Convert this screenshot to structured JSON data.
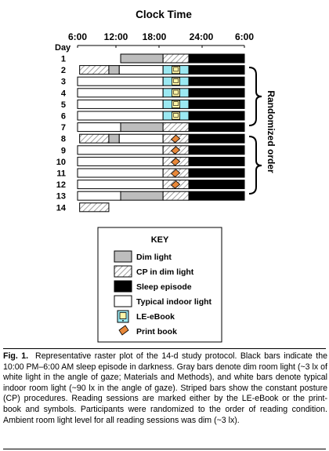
{
  "title": "Clock Time",
  "day_label": "Day",
  "clock_ticks": [
    "6:00",
    "12:00",
    "18:00",
    "24:00",
    "6:00"
  ],
  "group_labels": {
    "randomized": "Randomized order"
  },
  "colors": {
    "dim": "#bdbdbd",
    "typical": "#ffffff",
    "sleep": "#000000",
    "cp_stripe": "#888888",
    "ebook": "#9be9f2",
    "print_book": "#e8883a"
  },
  "protocol": {
    "days": [
      {
        "day": "1",
        "segments": [
          [
            "D",
            12.2,
            18.3
          ],
          [
            "C",
            18.3,
            22
          ],
          [
            "S",
            22,
            30
          ]
        ]
      },
      {
        "day": "2",
        "segments": [
          [
            "C",
            6.3,
            10.5
          ],
          [
            "D",
            10.5,
            12
          ],
          [
            "W",
            12,
            18.3
          ],
          [
            "E",
            18.3,
            22
          ],
          [
            "S",
            22,
            30
          ]
        ]
      },
      {
        "day": "3",
        "segments": [
          [
            "W",
            6,
            18.3
          ],
          [
            "E",
            18.3,
            22
          ],
          [
            "S",
            22,
            30
          ]
        ]
      },
      {
        "day": "4",
        "segments": [
          [
            "W",
            6,
            18.3
          ],
          [
            "E",
            18.3,
            22
          ],
          [
            "S",
            22,
            30
          ]
        ]
      },
      {
        "day": "5",
        "segments": [
          [
            "W",
            6,
            18.3
          ],
          [
            "E",
            18.3,
            22
          ],
          [
            "S",
            22,
            30
          ]
        ]
      },
      {
        "day": "6",
        "segments": [
          [
            "W",
            6,
            18.3
          ],
          [
            "E",
            18.3,
            22
          ],
          [
            "S",
            22,
            30
          ]
        ]
      },
      {
        "day": "7",
        "segments": [
          [
            "W",
            6,
            12.2
          ],
          [
            "D",
            12.2,
            18.3
          ],
          [
            "C",
            18.3,
            22
          ],
          [
            "S",
            22,
            30
          ]
        ]
      },
      {
        "day": "8",
        "segments": [
          [
            "C",
            6.3,
            10.5
          ],
          [
            "D",
            10.5,
            12
          ],
          [
            "W",
            12,
            18.3
          ],
          [
            "P",
            18.3,
            22
          ],
          [
            "S",
            22,
            30
          ]
        ]
      },
      {
        "day": "9",
        "segments": [
          [
            "W",
            6,
            18.3
          ],
          [
            "P",
            18.3,
            22
          ],
          [
            "S",
            22,
            30
          ]
        ]
      },
      {
        "day": "10",
        "segments": [
          [
            "W",
            6,
            18.3
          ],
          [
            "P",
            18.3,
            22
          ],
          [
            "S",
            22,
            30
          ]
        ]
      },
      {
        "day": "11",
        "segments": [
          [
            "W",
            6,
            18.3
          ],
          [
            "P",
            18.3,
            22
          ],
          [
            "S",
            22,
            30
          ]
        ]
      },
      {
        "day": "12",
        "segments": [
          [
            "W",
            6,
            18.3
          ],
          [
            "P",
            18.3,
            22
          ],
          [
            "S",
            22,
            30
          ]
        ]
      },
      {
        "day": "13",
        "segments": [
          [
            "W",
            6,
            12.2
          ],
          [
            "D",
            12.2,
            18.3
          ],
          [
            "C",
            18.3,
            22
          ],
          [
            "S",
            22,
            30
          ]
        ]
      },
      {
        "day": "14",
        "segments": [
          [
            "C",
            6.3,
            10.5
          ]
        ]
      }
    ]
  },
  "key": {
    "title": "KEY",
    "items": [
      {
        "symbol": "dim",
        "label": "Dim light"
      },
      {
        "symbol": "cp",
        "label": "CP in dim light"
      },
      {
        "symbol": "sleep",
        "label": "Sleep episode"
      },
      {
        "symbol": "typical",
        "label": "Typical indoor light"
      },
      {
        "symbol": "ebook",
        "label": "LE-eBook"
      },
      {
        "symbol": "print",
        "label": "Print book"
      }
    ]
  },
  "caption": {
    "label": "Fig. 1.",
    "text": "Representative raster plot of the 14-d study protocol. Black bars indicate the 10:00 PM–6:00 AM sleep episode in darkness. Gray bars denote dim room light (~3 lx of white light in the angle of gaze; Materials and Methods), and white bars denote typical indoor room light (~90 lx in the angle of gaze). Striped bars show the constant posture (CP) procedures. Reading sessions are marked either by the LE-eBook or the print-book and symbols. Participants were randomized to the order of reading condition. Ambient room light level for all reading sessions was dim (~3 lx)."
  }
}
